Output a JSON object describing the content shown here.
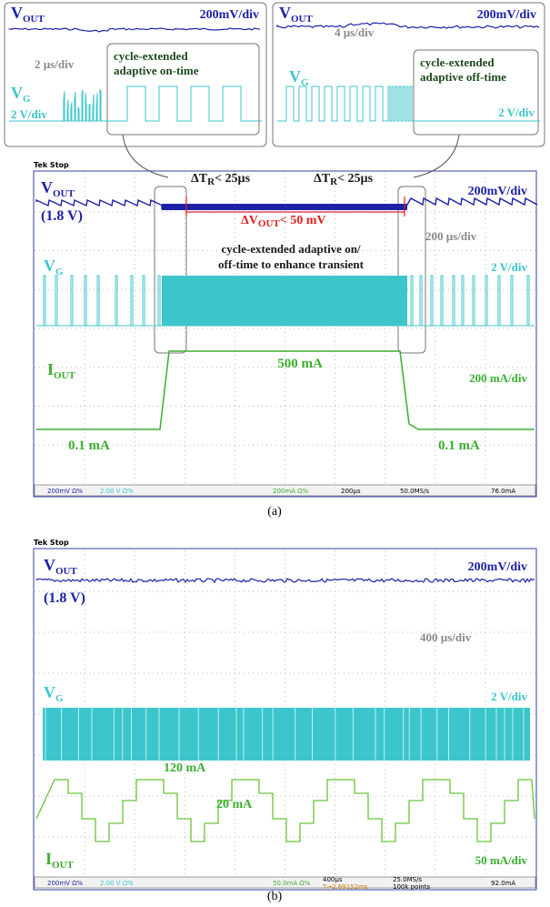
{
  "insets": [
    {
      "vout": {
        "main": "V",
        "sub": "OUT"
      },
      "vout_scale": "200mV/div",
      "time_scale": "2 µs/div",
      "note": [
        "cycle-extended",
        "adaptive on-time"
      ],
      "vg": {
        "main": "V",
        "sub": "G"
      },
      "vg_scale": "2 V/div"
    },
    {
      "vout": {
        "main": "V",
        "sub": "OUT"
      },
      "vout_scale": "200mV/div",
      "time_scale": "4 µs/div",
      "note": [
        "cycle-extended",
        "adaptive off-time"
      ],
      "vg": {
        "main": "V",
        "sub": "G"
      },
      "vg_scale": "2 V/div"
    }
  ],
  "panel_a": {
    "status": "Tek Stop",
    "vout": {
      "main": "V",
      "sub": "OUT"
    },
    "vout_level": "(1.8 V)",
    "vout_scale": "200mV/div",
    "dtr": [
      {
        "main": "ΔT",
        "sub": "R",
        "rest": "< 25µs"
      },
      {
        "main": "ΔT",
        "sub": "R",
        "rest": "< 25µs"
      }
    ],
    "dvout": {
      "main": "ΔV",
      "sub": "OUT",
      "rest": "< 50 mV"
    },
    "time_scale": "200 µs/div",
    "vg": {
      "main": "V",
      "sub": "G"
    },
    "vg_scale": "2 V/div",
    "note": [
      "cycle-extended adaptive on/",
      "off-time to enhance transient"
    ],
    "iout": {
      "main": "I",
      "sub": "OUT"
    },
    "iout_high": "500 mA",
    "iout_scale": "200 mA/div",
    "iout_low": [
      "0.1 mA",
      "0.1 mA"
    ],
    "bar": [
      "200mV Ω%",
      "2.00 V Ω%",
      "200mA Ω%",
      "200µs",
      "50.0MS/s",
      "76.0mA"
    ],
    "caption": "(a)"
  },
  "panel_b": {
    "status": "Tek Stop",
    "vout": {
      "main": "V",
      "sub": "OUT"
    },
    "vout_level": "(1.8 V)",
    "vout_scale": "200mV/div",
    "time_scale": "400 µs/div",
    "vg": {
      "main": "V",
      "sub": "G"
    },
    "vg_scale": "2 V/div",
    "iout_high": "120 mA",
    "iout_low": "20 mA",
    "iout": {
      "main": "I",
      "sub": "OUT"
    },
    "iout_scale": "50 mA/div",
    "bar": [
      "200mV Ω%",
      "2.00 V Ω%",
      "50.0mA Ω%",
      "400µs",
      "T→2.69152ms",
      "25.0MS/s",
      "100k points",
      "92.0mA"
    ],
    "caption": "(b)"
  }
}
